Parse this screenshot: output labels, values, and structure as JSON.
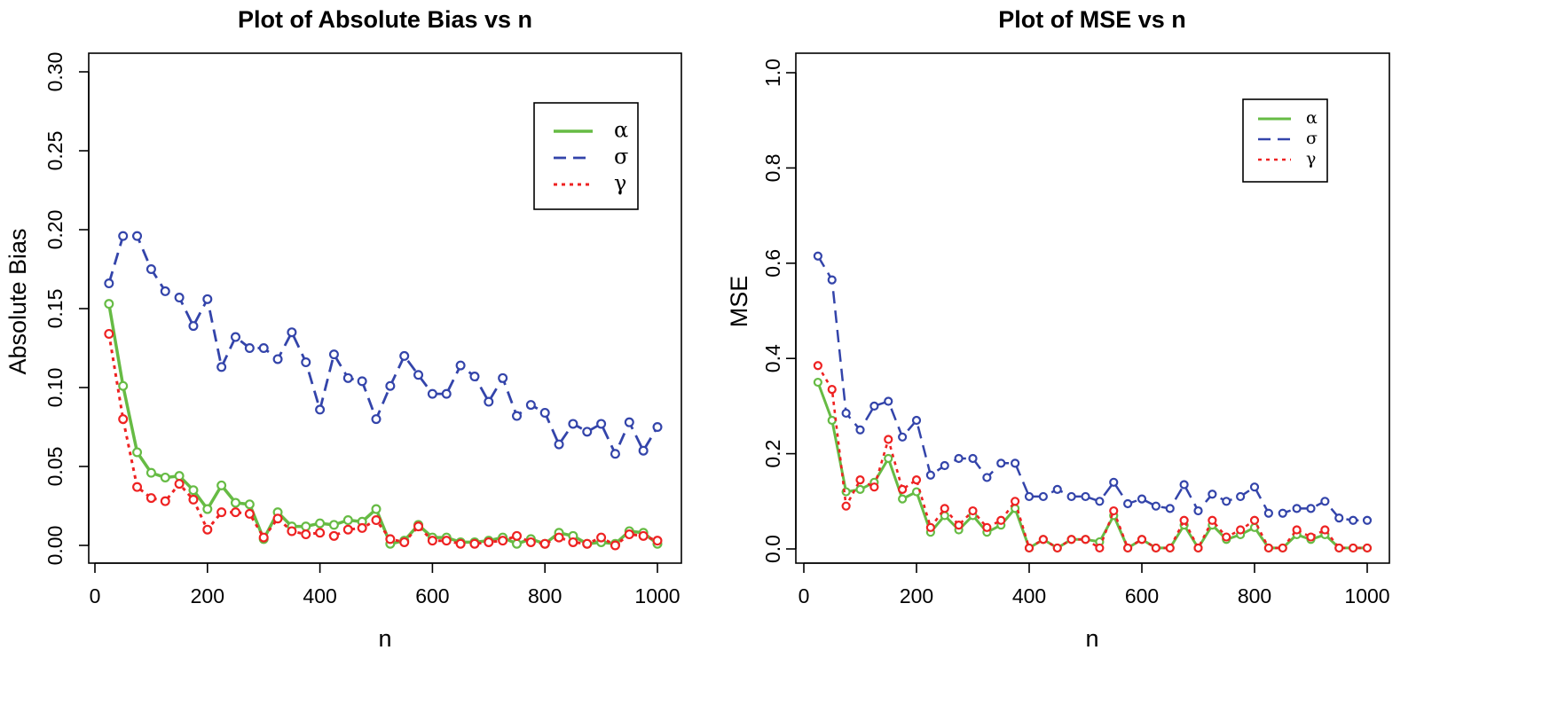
{
  "chart_data": [
    {
      "type": "line",
      "title": "Plot of Absolute Bias vs n",
      "xlabel": "n",
      "ylabel": "Absolute Bias",
      "xlim": [
        0,
        1000
      ],
      "ylim": [
        0,
        0.3
      ],
      "xticks": [
        0,
        200,
        400,
        600,
        800,
        1000
      ],
      "yticks": [
        0.0,
        0.05,
        0.1,
        0.15,
        0.2,
        0.25,
        0.3
      ],
      "ytick_labels": [
        "0.00",
        "0.05",
        "0.10",
        "0.15",
        "0.20",
        "0.25",
        "0.30"
      ],
      "legend_position": "top-right",
      "x": [
        25,
        50,
        75,
        100,
        125,
        150,
        175,
        200,
        225,
        250,
        275,
        300,
        325,
        350,
        375,
        400,
        425,
        450,
        475,
        500,
        525,
        550,
        575,
        600,
        625,
        650,
        675,
        700,
        725,
        750,
        775,
        800,
        825,
        850,
        875,
        900,
        925,
        950,
        975,
        1000
      ],
      "series": [
        {
          "name": "α",
          "color": "#66bb44",
          "line_style": "solid",
          "values": [
            0.153,
            0.101,
            0.059,
            0.046,
            0.043,
            0.044,
            0.035,
            0.023,
            0.038,
            0.027,
            0.026,
            0.004,
            0.021,
            0.012,
            0.012,
            0.014,
            0.013,
            0.016,
            0.015,
            0.023,
            0.001,
            0.003,
            0.013,
            0.005,
            0.005,
            0.002,
            0.002,
            0.003,
            0.005,
            0.001,
            0.004,
            0.001,
            0.008,
            0.006,
            0.001,
            0.002,
            0.001,
            0.009,
            0.008,
            0.001
          ]
        },
        {
          "name": "σ",
          "color": "#3344aa",
          "line_style": "dashed",
          "values": [
            0.166,
            0.196,
            0.196,
            0.175,
            0.161,
            0.157,
            0.139,
            0.156,
            0.113,
            0.132,
            0.125,
            0.125,
            0.118,
            0.135,
            0.116,
            0.086,
            0.121,
            0.106,
            0.104,
            0.08,
            0.101,
            0.12,
            0.108,
            0.096,
            0.096,
            0.114,
            0.107,
            0.091,
            0.106,
            0.082,
            0.089,
            0.084,
            0.064,
            0.077,
            0.072,
            0.077,
            0.058,
            0.078,
            0.06,
            0.075
          ]
        },
        {
          "name": "γ",
          "color": "#ee2222",
          "line_style": "dotted",
          "values": [
            0.134,
            0.08,
            0.037,
            0.03,
            0.028,
            0.039,
            0.029,
            0.01,
            0.021,
            0.021,
            0.02,
            0.005,
            0.017,
            0.009,
            0.007,
            0.008,
            0.006,
            0.01,
            0.011,
            0.016,
            0.004,
            0.002,
            0.012,
            0.003,
            0.003,
            0.001,
            0.001,
            0.002,
            0.003,
            0.006,
            0.002,
            0.001,
            0.005,
            0.002,
            0.001,
            0.005,
            0.0,
            0.007,
            0.006,
            0.003
          ]
        }
      ]
    },
    {
      "type": "line",
      "title": "Plot of MSE vs n",
      "xlabel": "n",
      "ylabel": "MSE",
      "xlim": [
        0,
        1000
      ],
      "ylim": [
        0,
        1.0
      ],
      "xticks": [
        0,
        200,
        400,
        600,
        800,
        1000
      ],
      "yticks": [
        0.0,
        0.2,
        0.4,
        0.6,
        0.8,
        1.0
      ],
      "ytick_labels": [
        "0.0",
        "0.2",
        "0.4",
        "0.6",
        "0.8",
        "1.0"
      ],
      "legend_position": "top-right",
      "x": [
        25,
        50,
        75,
        100,
        125,
        150,
        175,
        200,
        225,
        250,
        275,
        300,
        325,
        350,
        375,
        400,
        425,
        450,
        475,
        500,
        525,
        550,
        575,
        600,
        625,
        650,
        675,
        700,
        725,
        750,
        775,
        800,
        825,
        850,
        875,
        900,
        925,
        950,
        975,
        1000
      ],
      "series": [
        {
          "name": "α",
          "color": "#66bb44",
          "line_style": "solid",
          "values": [
            0.35,
            0.27,
            0.12,
            0.125,
            0.14,
            0.19,
            0.105,
            0.12,
            0.035,
            0.07,
            0.04,
            0.07,
            0.035,
            0.05,
            0.085,
            0.002,
            0.02,
            0.002,
            0.02,
            0.02,
            0.015,
            0.07,
            0.002,
            0.02,
            0.002,
            0.002,
            0.05,
            0.002,
            0.05,
            0.02,
            0.03,
            0.045,
            0.002,
            0.002,
            0.03,
            0.02,
            0.03,
            0.002,
            0.002,
            0.002
          ]
        },
        {
          "name": "σ",
          "color": "#3344aa",
          "line_style": "dashed",
          "values": [
            0.615,
            0.565,
            0.285,
            0.25,
            0.3,
            0.31,
            0.235,
            0.27,
            0.155,
            0.175,
            0.19,
            0.19,
            0.15,
            0.18,
            0.18,
            0.11,
            0.11,
            0.125,
            0.11,
            0.11,
            0.1,
            0.14,
            0.095,
            0.105,
            0.09,
            0.085,
            0.135,
            0.08,
            0.115,
            0.1,
            0.11,
            0.13,
            0.075,
            0.075,
            0.085,
            0.085,
            0.1,
            0.065,
            0.06,
            0.06
          ]
        },
        {
          "name": "γ",
          "color": "#ee2222",
          "line_style": "dotted",
          "values": [
            0.385,
            0.335,
            0.09,
            0.145,
            0.13,
            0.23,
            0.125,
            0.145,
            0.045,
            0.085,
            0.05,
            0.08,
            0.045,
            0.06,
            0.1,
            0.002,
            0.02,
            0.002,
            0.02,
            0.02,
            0.002,
            0.08,
            0.002,
            0.02,
            0.002,
            0.002,
            0.06,
            0.002,
            0.06,
            0.025,
            0.04,
            0.06,
            0.002,
            0.002,
            0.04,
            0.025,
            0.04,
            0.002,
            0.002,
            0.002
          ]
        }
      ]
    }
  ]
}
